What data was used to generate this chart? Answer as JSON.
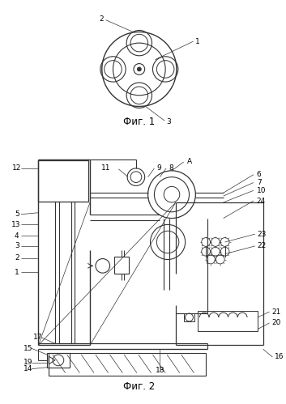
{
  "bg_color": "#ffffff",
  "line_color": "#333333",
  "fig1_caption": "Фиг. 1",
  "fig2_caption": "Фиг. 2"
}
